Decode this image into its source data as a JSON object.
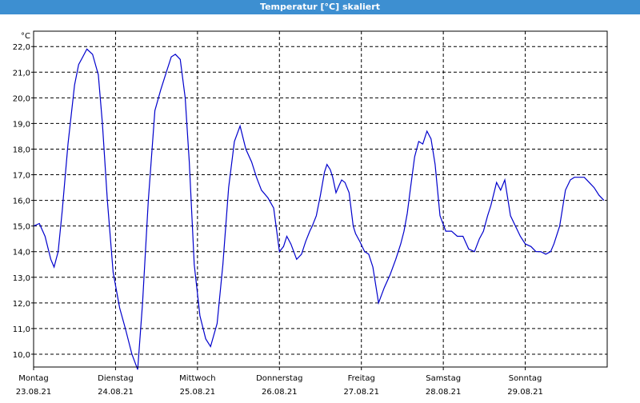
{
  "window": {
    "title": "Temperatur [°C] skaliert"
  },
  "chart_data": {
    "type": "line",
    "title": "Temperatur [°C] skaliert",
    "ylabel": "°C",
    "xlabel": "",
    "ylim": [
      9.5,
      22.6
    ],
    "xlim": [
      0,
      7
    ],
    "grid": true,
    "y_ticks": [
      10.0,
      11.0,
      12.0,
      13.0,
      14.0,
      15.0,
      16.0,
      17.0,
      18.0,
      19.0,
      20.0,
      21.0,
      22.0
    ],
    "y_tick_labels": [
      "10,0",
      "11,0",
      "12,0",
      "13,0",
      "14,0",
      "15,0",
      "16,0",
      "17,0",
      "18,0",
      "19,0",
      "20,0",
      "21,0",
      "22,0"
    ],
    "x_ticks": [
      0,
      1,
      2,
      3,
      4,
      5,
      6
    ],
    "x_tick_labels": [
      {
        "day": "Montag",
        "date": "23.08.21"
      },
      {
        "day": "Dienstag",
        "date": "24.08.21"
      },
      {
        "day": "Mittwoch",
        "date": "25.08.21"
      },
      {
        "day": "Donnerstag",
        "date": "26.08.21"
      },
      {
        "day": "Freitag",
        "date": "27.08.21"
      },
      {
        "day": "Samstag",
        "date": "28.08.21"
      },
      {
        "day": "Sonntag",
        "date": "29.08.21"
      }
    ],
    "series": [
      {
        "color": "#0000cc",
        "x": [
          0.0,
          0.07,
          0.14,
          0.21,
          0.25,
          0.3,
          0.35,
          0.42,
          0.5,
          0.55,
          0.6,
          0.65,
          0.72,
          0.79,
          0.84,
          0.9,
          0.97,
          1.05,
          1.12,
          1.2,
          1.27,
          1.33,
          1.4,
          1.48,
          1.55,
          1.62,
          1.68,
          1.73,
          1.79,
          1.85,
          1.9,
          1.96,
          2.03,
          2.1,
          2.16,
          2.24,
          2.31,
          2.38,
          2.45,
          2.52,
          2.59,
          2.66,
          2.72,
          2.78,
          2.86,
          2.93,
          3.0,
          3.05,
          3.09,
          3.14,
          3.21,
          3.27,
          3.32,
          3.37,
          3.4,
          3.45,
          3.5,
          3.55,
          3.58,
          3.62,
          3.65,
          3.69,
          3.73,
          3.76,
          3.8,
          3.85,
          3.9,
          3.93,
          3.98,
          4.04,
          4.09,
          4.14,
          4.21,
          4.28,
          4.35,
          4.42,
          4.48,
          4.52,
          4.56,
          4.6,
          4.65,
          4.7,
          4.75,
          4.8,
          4.85,
          4.9,
          4.96,
          5.03,
          5.1,
          5.17,
          5.24,
          5.31,
          5.38,
          5.44,
          5.49,
          5.54,
          5.58,
          5.65,
          5.7,
          5.75,
          5.82,
          5.88,
          5.94,
          6.0,
          6.07,
          6.13,
          6.19,
          6.25,
          6.31,
          6.35,
          6.42,
          6.49,
          6.55,
          6.6,
          6.66,
          6.72,
          6.78,
          6.84,
          6.9,
          6.96
        ],
        "y": [
          15.0,
          15.1,
          14.6,
          13.7,
          13.4,
          14.0,
          15.6,
          18.2,
          20.5,
          21.3,
          21.6,
          21.9,
          21.7,
          20.9,
          19.0,
          16.0,
          13.2,
          11.8,
          11.0,
          10.0,
          9.4,
          12.0,
          16.0,
          19.5,
          20.3,
          21.0,
          21.6,
          21.7,
          21.5,
          20.0,
          17.5,
          13.5,
          11.5,
          10.6,
          10.3,
          11.2,
          13.5,
          16.5,
          18.3,
          18.9,
          18.0,
          17.5,
          16.9,
          16.4,
          16.1,
          15.7,
          14.0,
          14.2,
          14.6,
          14.3,
          13.7,
          13.9,
          14.4,
          14.8,
          15.0,
          15.4,
          16.2,
          17.1,
          17.4,
          17.2,
          16.9,
          16.3,
          16.6,
          16.8,
          16.7,
          16.3,
          15.0,
          14.7,
          14.4,
          14.0,
          13.9,
          13.4,
          12.0,
          12.6,
          13.1,
          13.7,
          14.3,
          14.8,
          15.5,
          16.5,
          17.7,
          18.3,
          18.2,
          18.7,
          18.4,
          17.4,
          15.4,
          14.8,
          14.8,
          14.6,
          14.6,
          14.1,
          14.0,
          14.5,
          14.8,
          15.4,
          15.8,
          16.7,
          16.4,
          16.8,
          15.4,
          15.0,
          14.6,
          14.3,
          14.2,
          14.0,
          14.0,
          13.9,
          14.0,
          14.3,
          15.0,
          16.4,
          16.8,
          16.9,
          16.9,
          16.9,
          16.7,
          16.5,
          16.2,
          16.0
        ]
      }
    ]
  }
}
